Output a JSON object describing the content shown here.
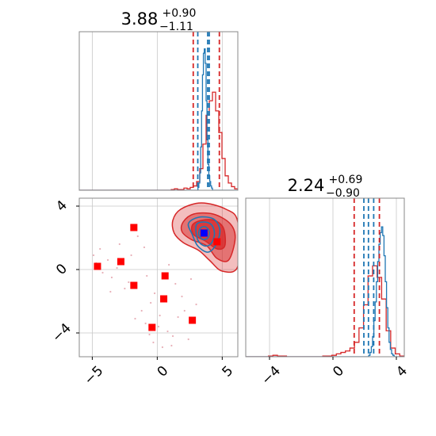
{
  "colors": {
    "primary": "#d62728",
    "secondary": "#1f77b4",
    "marker_square": "#ff0000",
    "marker_truth": "#0000ff",
    "grid": "#c8c8c8"
  },
  "chart_data": {
    "type": "corner",
    "x_limits": [
      -6.0,
      6.2
    ],
    "y_limits": [
      -5.5,
      4.5
    ],
    "marginal_x": {
      "title": {
        "main": "3.88",
        "sup": "+0.90",
        "sub": "−1.11"
      },
      "red_quantiles": [
        2.77,
        4.78
      ],
      "blue_quantiles": [
        3.12,
        3.88,
        4.0
      ]
    },
    "marginal_y": {
      "title": {
        "main": "2.24",
        "sup": "+0.69",
        "sub": "−0.90"
      },
      "red_quantiles": [
        1.34,
        2.93
      ],
      "blue_quantiles": [
        1.95,
        2.24,
        2.57
      ]
    },
    "x_ticks": [
      -5,
      0,
      5
    ],
    "x_tick_labels": [
      "−5",
      "0",
      "5"
    ],
    "y_ticks": [
      4,
      0,
      -4
    ],
    "y_tick_labels": [
      "4",
      "0",
      "−4"
    ],
    "diag2_ticks": [
      -4,
      0,
      4
    ],
    "diag2_tick_labels": [
      "−4",
      "0",
      "4"
    ],
    "square_markers": [
      {
        "x": -1.8,
        "y": 2.65
      },
      {
        "x": -4.6,
        "y": 0.2
      },
      {
        "x": -2.8,
        "y": 0.5
      },
      {
        "x": -1.8,
        "y": -1.0
      },
      {
        "x": 0.6,
        "y": -0.4
      },
      {
        "x": 0.5,
        "y": -1.85
      },
      {
        "x": -0.4,
        "y": -3.65
      },
      {
        "x": 2.7,
        "y": -3.2
      },
      {
        "x": 4.6,
        "y": 1.75
      }
    ],
    "truth_marker": {
      "x": 3.6,
      "y": 2.3
    },
    "series": [
      {
        "color": "#d62728",
        "hist_x": [
          0,
          0,
          0,
          0,
          0,
          0,
          0,
          0,
          0,
          0,
          0,
          0,
          0,
          0,
          0,
          0,
          0,
          0,
          0,
          0,
          0,
          0,
          0,
          0,
          0,
          0,
          0,
          0,
          0,
          0.005,
          0.01,
          0.005,
          0.005,
          0.015,
          0.01,
          0.02,
          0.03,
          0.06,
          0.15,
          0.32,
          0.52,
          0.62,
          0.68,
          0.55,
          0.4,
          0.22,
          0.1,
          0.05,
          0.025,
          0.01
        ],
        "hist_y": [
          0,
          0,
          0,
          0,
          0,
          0.005,
          0.01,
          0.005,
          0.005,
          0,
          0,
          0,
          0,
          0,
          0,
          0,
          0,
          0.005,
          0.005,
          0.01,
          0.02,
          0.03,
          0.04,
          0.06,
          0.1,
          0.2,
          0.36,
          0.56,
          0.63,
          0.55,
          0.4,
          0.18,
          0.06,
          0.02,
          0.005
        ],
        "contour_levels": [
          [
            [
              1.2,
              3.1
            ],
            [
              1.8,
              3.8
            ],
            [
              3.4,
              4.2
            ],
            [
              5.3,
              3.8
            ],
            [
              6.2,
              3.0
            ],
            [
              6.2,
              0.2
            ],
            [
              5.0,
              -0.1
            ],
            [
              4.0,
              0.6
            ],
            [
              3.2,
              1.2
            ],
            [
              2.0,
              1.7
            ],
            [
              1.3,
              2.3
            ]
          ],
          [
            [
              2.0,
              3.0
            ],
            [
              2.8,
              3.5
            ],
            [
              4.3,
              3.5
            ],
            [
              5.6,
              2.9
            ],
            [
              6.0,
              2.0
            ],
            [
              5.5,
              0.6
            ],
            [
              4.6,
              0.7
            ],
            [
              3.8,
              1.5
            ],
            [
              2.6,
              1.9
            ],
            [
              1.9,
              2.4
            ]
          ],
          [
            [
              2.7,
              2.8
            ],
            [
              3.4,
              3.1
            ],
            [
              4.4,
              3.1
            ],
            [
              5.1,
              2.6
            ],
            [
              5.2,
              1.5
            ],
            [
              4.6,
              1.3
            ],
            [
              3.7,
              1.8
            ],
            [
              2.8,
              2.2
            ]
          ]
        ]
      },
      {
        "color": "#1f77b4",
        "hist_x": [
          0,
          0,
          0,
          0,
          0,
          0,
          0,
          0,
          0,
          0,
          0,
          0,
          0,
          0,
          0,
          0,
          0,
          0,
          0,
          0,
          0,
          0,
          0,
          0,
          0,
          0,
          0,
          0,
          0,
          0,
          0,
          0,
          0,
          0,
          0,
          0,
          0,
          0,
          0,
          0,
          0,
          0,
          0,
          0,
          0,
          0,
          0,
          0,
          0,
          0,
          0,
          0,
          0,
          0,
          0,
          0,
          0,
          0,
          0,
          0,
          0,
          0,
          0,
          0,
          0,
          0,
          0,
          0,
          0,
          0,
          0,
          0,
          0,
          0,
          0,
          0,
          0,
          0,
          0,
          0,
          0,
          0,
          0,
          0,
          0,
          0,
          0,
          0,
          0,
          0,
          0,
          0,
          0,
          0,
          0,
          0,
          0,
          0,
          0,
          0,
          0,
          0,
          0,
          0,
          0,
          0,
          0,
          0,
          0,
          0,
          0,
          0,
          0,
          0,
          0,
          0,
          0,
          0,
          0,
          0,
          0,
          0,
          0,
          0,
          0,
          0,
          0,
          0,
          0,
          0,
          0,
          0.02,
          0.05,
          0.12,
          0.3,
          0.55,
          0.8,
          0.95,
          0.98,
          0.88,
          0.62,
          0.35,
          0.18,
          0.1,
          0.06,
          0.03,
          0.015,
          0,
          0,
          0,
          0,
          0,
          0,
          0,
          0,
          0,
          0,
          0,
          0,
          0,
          0,
          0,
          0,
          0,
          0,
          0,
          0,
          0,
          0,
          0,
          0,
          0,
          0,
          0,
          0
        ],
        "hist_y": [
          0,
          0,
          0,
          0,
          0,
          0,
          0,
          0,
          0,
          0,
          0,
          0,
          0,
          0,
          0,
          0,
          0,
          0,
          0,
          0,
          0,
          0,
          0,
          0,
          0,
          0,
          0,
          0,
          0,
          0,
          0,
          0,
          0,
          0,
          0,
          0,
          0,
          0,
          0,
          0,
          0,
          0,
          0,
          0,
          0,
          0,
          0,
          0,
          0,
          0,
          0,
          0,
          0,
          0,
          0,
          0,
          0,
          0,
          0,
          0,
          0,
          0,
          0,
          0,
          0,
          0,
          0,
          0,
          0,
          0,
          0,
          0,
          0,
          0,
          0,
          0,
          0,
          0,
          0,
          0,
          0,
          0,
          0,
          0,
          0,
          0,
          0,
          0,
          0,
          0,
          0,
          0,
          0,
          0,
          0,
          0,
          0,
          0.01,
          0.03,
          0.07,
          0.14,
          0.25,
          0.38,
          0.52,
          0.66,
          0.78,
          0.86,
          0.9,
          0.84,
          0.7,
          0.52,
          0.34,
          0.2,
          0.1,
          0.05,
          0.02,
          0.01,
          0,
          0,
          0,
          0,
          0,
          0,
          0,
          0
        ],
        "contour_levels": [
          [
            [
              2.4,
              2.9
            ],
            [
              3.2,
              3.3
            ],
            [
              4.3,
              3.2
            ],
            [
              4.8,
              2.6
            ],
            [
              4.7,
              1.9
            ],
            [
              4.3,
              1.3
            ],
            [
              3.8,
              1.1
            ],
            [
              3.1,
              1.5
            ],
            [
              2.7,
              2.2
            ]
          ],
          [
            [
              3.0,
              2.8
            ],
            [
              3.6,
              3.0
            ],
            [
              4.2,
              2.8
            ],
            [
              4.4,
              2.2
            ],
            [
              4.1,
              1.6
            ],
            [
              3.6,
              1.5
            ],
            [
              3.1,
              1.9
            ]
          ],
          [
            [
              3.3,
              2.6
            ],
            [
              3.7,
              2.7
            ],
            [
              4.0,
              2.4
            ],
            [
              3.9,
              2.0
            ],
            [
              3.5,
              1.9
            ],
            [
              3.2,
              2.2
            ]
          ]
        ]
      }
    ],
    "scatter": [
      {
        "x": -4.7,
        "y": 0.4
      },
      {
        "x": -4.2,
        "y": -0.2
      },
      {
        "x": -3.8,
        "y": 0.6
      },
      {
        "x": -3.5,
        "y": -0.5
      },
      {
        "x": -4.9,
        "y": 0.9
      },
      {
        "x": -3.1,
        "y": 0.1
      },
      {
        "x": -2.5,
        "y": -1.2
      },
      {
        "x": -2.2,
        "y": -0.8
      },
      {
        "x": -1.5,
        "y": 2.1
      },
      {
        "x": -1.2,
        "y": -2.6
      },
      {
        "x": -0.9,
        "y": -3.4
      },
      {
        "x": -0.6,
        "y": -4.1
      },
      {
        "x": -0.3,
        "y": -4.6
      },
      {
        "x": 0.1,
        "y": -3.6
      },
      {
        "x": 0.4,
        "y": -4.9
      },
      {
        "x": 0.8,
        "y": -3.9
      },
      {
        "x": 1.2,
        "y": -4.2
      },
      {
        "x": 1.6,
        "y": -3.0
      },
      {
        "x": 2.1,
        "y": -2.6
      },
      {
        "x": 2.4,
        "y": -4.4
      },
      {
        "x": 1.9,
        "y": -1.7
      },
      {
        "x": 1.4,
        "y": -0.9
      },
      {
        "x": 0.9,
        "y": 0.3
      },
      {
        "x": -0.2,
        "y": -1.5
      },
      {
        "x": -1.0,
        "y": 1.4
      },
      {
        "x": -0.5,
        "y": -2.1
      },
      {
        "x": 0.2,
        "y": -2.9
      },
      {
        "x": -2.9,
        "y": 1.6
      },
      {
        "x": -3.6,
        "y": -1.4
      },
      {
        "x": -1.7,
        "y": -3.1
      },
      {
        "x": 3.0,
        "y": -2.2
      },
      {
        "x": 2.6,
        "y": -0.6
      },
      {
        "x": -4.4,
        "y": 1.3
      },
      {
        "x": -2.0,
        "y": 0.9
      },
      {
        "x": 1.1,
        "y": -4.8
      },
      {
        "x": -0.8,
        "y": -0.4
      }
    ]
  }
}
